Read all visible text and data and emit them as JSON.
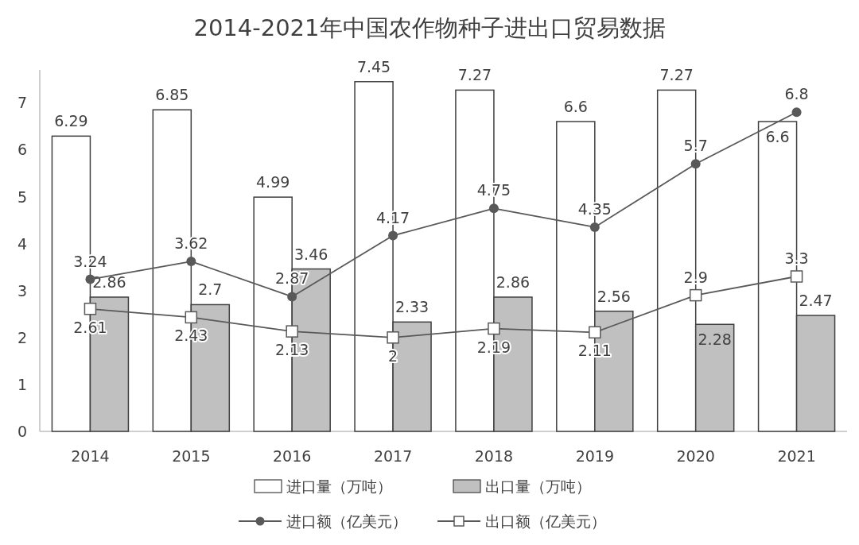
{
  "chart_data": {
    "type": "bar",
    "title": "2014-2021年中国农作物种子进出口贸易数据",
    "categories": [
      "2014",
      "2015",
      "2016",
      "2017",
      "2018",
      "2019",
      "2020",
      "2021"
    ],
    "series": [
      {
        "name": "进口量（万吨）",
        "color": "#ffffff",
        "values": [
          6.29,
          6.85,
          4.99,
          7.45,
          7.27,
          6.6,
          7.27,
          6.6
        ]
      },
      {
        "name": "出口量（万吨）",
        "color": "#c0c0c0",
        "values": [
          2.86,
          2.7,
          3.46,
          2.33,
          2.86,
          2.56,
          2.28,
          2.47
        ]
      },
      {
        "name": "进口额（亿美元）",
        "type": "line",
        "marker": "circle",
        "color": "#595959",
        "values": [
          3.24,
          3.62,
          2.87,
          4.17,
          4.75,
          4.35,
          5.7,
          6.8
        ]
      },
      {
        "name": "出口额（亿美元）",
        "type": "line",
        "marker": "square",
        "color": "#595959",
        "values": [
          2.61,
          2.43,
          2.13,
          2,
          2.19,
          2.11,
          2.9,
          3.3
        ]
      }
    ],
    "ylim": [
      0,
      7.7
    ],
    "yticks": [
      0,
      1,
      2,
      3,
      4,
      5,
      6,
      7
    ],
    "data_labels": true,
    "legend": "bottom"
  }
}
